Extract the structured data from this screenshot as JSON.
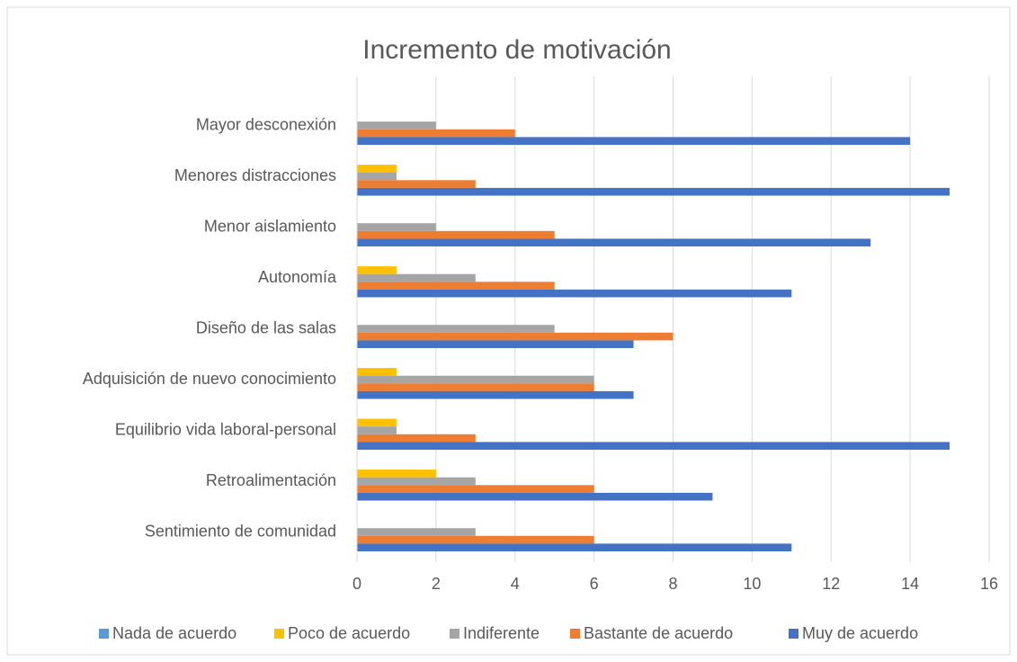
{
  "chart_data": {
    "type": "bar",
    "orientation": "horizontal",
    "title": "Incremento de motivación",
    "categories": [
      "Mayor desconexión",
      "Menores distracciones",
      "Menor aislamiento",
      "Autonomía",
      "Diseño de las salas",
      "Adquisición de nuevo conocimiento",
      "Equilibrio vida laboral-personal",
      "Retroalimentación",
      "Sentimiento de comunidad"
    ],
    "series": [
      {
        "name": "Nada de acuerdo",
        "color": "#5B9BD5",
        "values": [
          0,
          0,
          0,
          0,
          0,
          0,
          0,
          0,
          0
        ]
      },
      {
        "name": "Poco de acuerdo",
        "color": "#FFC000",
        "values": [
          0,
          1,
          0,
          1,
          0,
          1,
          1,
          2,
          0
        ]
      },
      {
        "name": "Indiferente",
        "color": "#A5A5A5",
        "values": [
          2,
          1,
          2,
          3,
          5,
          6,
          1,
          3,
          3
        ]
      },
      {
        "name": "Bastante de acuerdo",
        "color": "#ED7D31",
        "values": [
          4,
          3,
          5,
          5,
          8,
          6,
          3,
          6,
          6
        ]
      },
      {
        "name": "Muy de acuerdo",
        "color": "#4472C4",
        "values": [
          14,
          15,
          13,
          11,
          7,
          7,
          15,
          9,
          11
        ]
      }
    ],
    "xlim": [
      0,
      16
    ],
    "xticks": [
      0,
      2,
      4,
      6,
      8,
      10,
      12,
      14,
      16
    ],
    "grid": true,
    "legend": "bottom"
  }
}
